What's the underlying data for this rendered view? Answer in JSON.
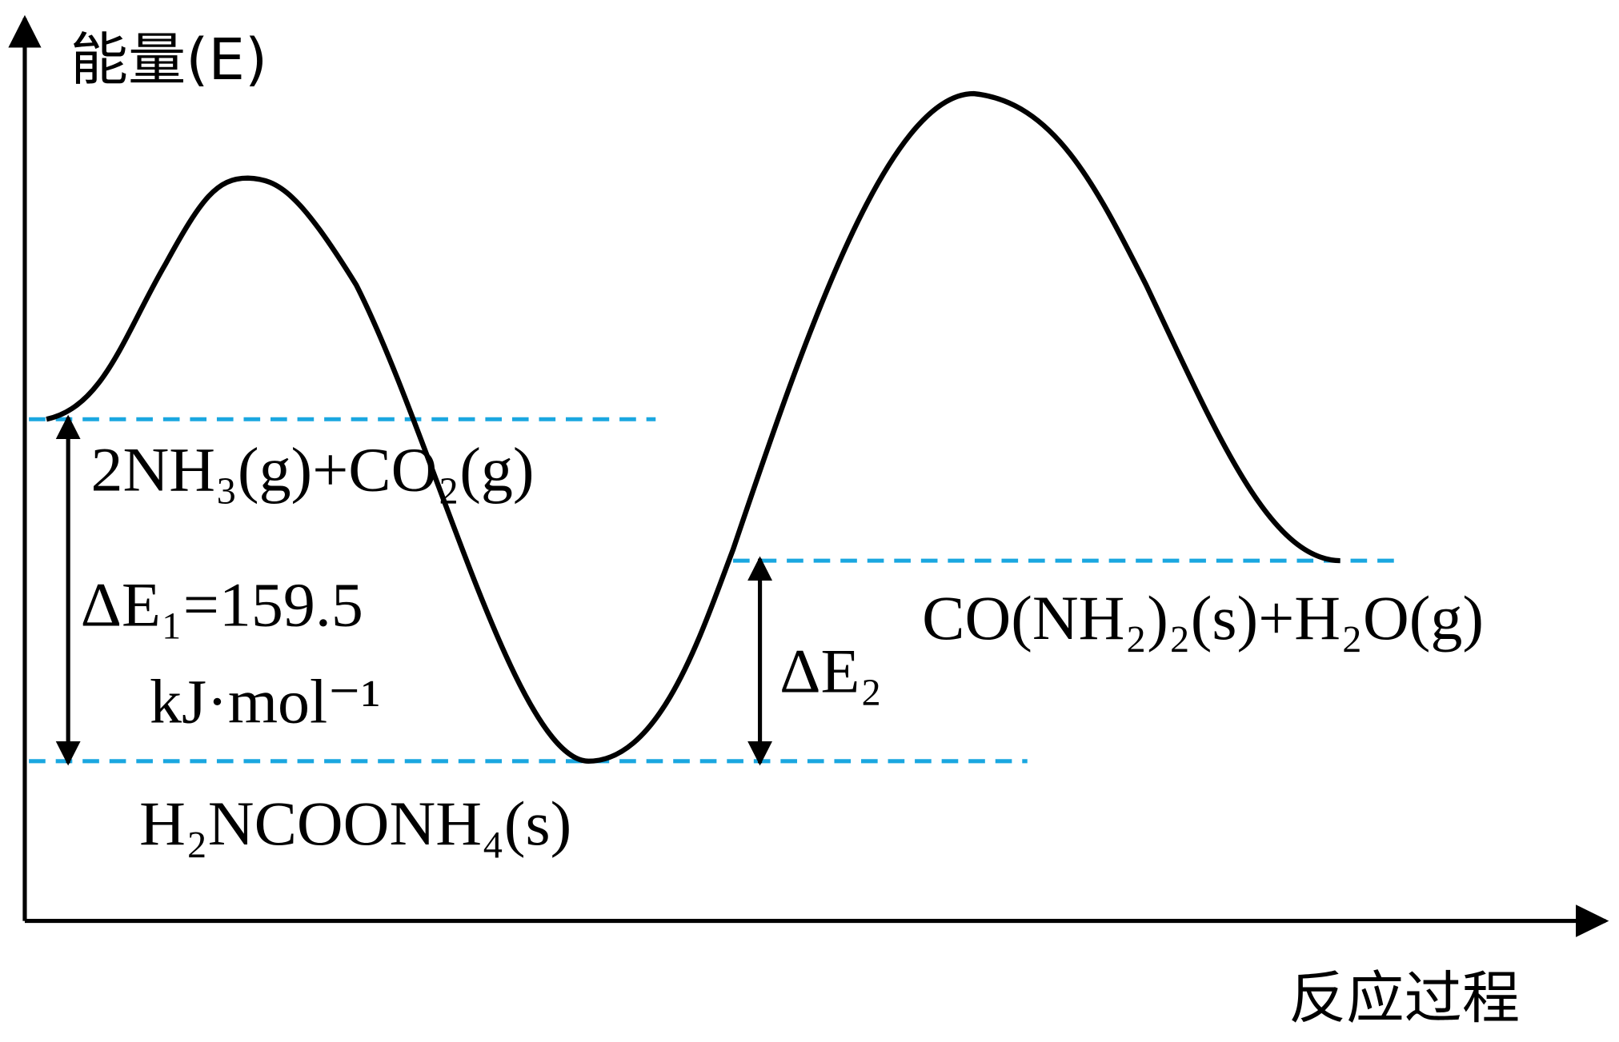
{
  "axes": {
    "y_label": "能量(E)",
    "x_label": "反应过程"
  },
  "levels": {
    "reactants": "2NH₃(g)+CO₂(g)",
    "intermediate": "H₂NCOONH₄(s)",
    "products": "CO(NH₂)₂(s)+H₂O(g)"
  },
  "delta_e1": {
    "label": "ΔE₁=159.5",
    "unit": "kJ·mol⁻¹"
  },
  "delta_e2": {
    "label": "ΔE₂"
  }
}
